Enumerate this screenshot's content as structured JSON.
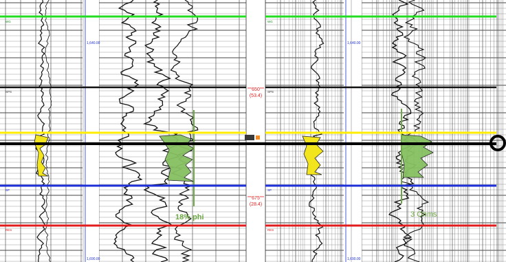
{
  "depth_ticks": {
    "upper_value": "650",
    "upper_tvd": "(53.4)",
    "lower_value": "675",
    "lower_tvd": "(28.4)"
  },
  "left_panel": {
    "annotation": "18% phi",
    "scale_label_top": "1,640.00",
    "scale_label_bottom": "1,690.00"
  },
  "right_panel": {
    "annotation": "3 Ohms",
    "scale_label_top": "1,640.00",
    "scale_label_bottom": "1,690.00"
  },
  "markers": [
    {
      "id": "green-top",
      "color": "#22dd22"
    },
    {
      "id": "black-upper",
      "color": "#111111"
    },
    {
      "id": "yellow",
      "color": "#ffee00"
    },
    {
      "id": "black-thick",
      "color": "#000000"
    },
    {
      "id": "blue",
      "color": "#1d2fd6"
    },
    {
      "id": "red",
      "color": "#e11c1c"
    }
  ],
  "marker_tags": {
    "green_tag": "WG",
    "black_tag": "SPS",
    "blue_tag": "SP",
    "red_tag": "RES"
  },
  "fills": {
    "sp_fill": "#f2e51d",
    "resist_fill": "#86c062",
    "annotation_color": "#6ea845",
    "depth_color": "#e11c1c"
  },
  "icons": {
    "end_marker": "circle-end-icon",
    "center_logo": "logo-icon"
  }
}
